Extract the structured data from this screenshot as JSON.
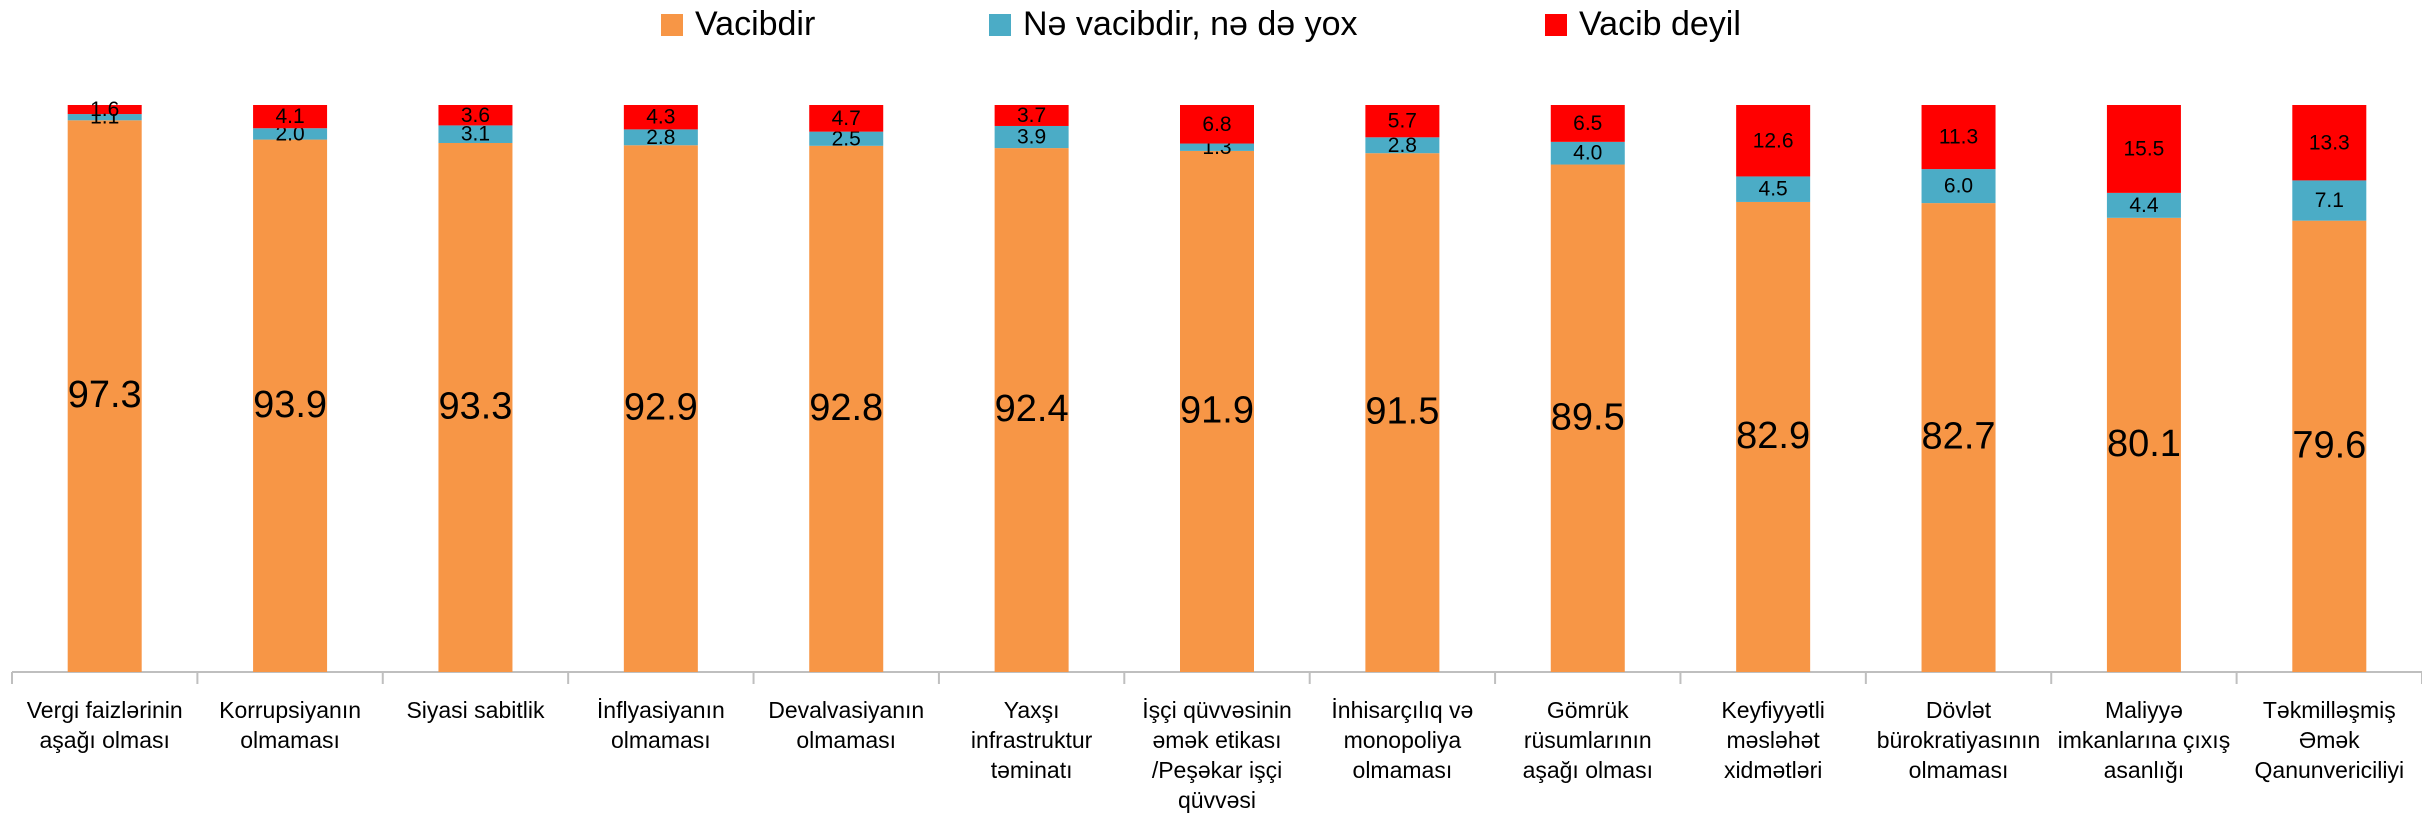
{
  "chart_data": {
    "type": "stacked_bar",
    "categories": [
      [
        "Vergi faizlərinin",
        "aşağı olması"
      ],
      [
        "Korrupsiyanın",
        "olmaması"
      ],
      [
        "Siyasi sabitlik"
      ],
      [
        "İnflyasiyanın",
        "olmaması"
      ],
      [
        "Devalvasiyanın",
        "olmaması"
      ],
      [
        "Yaxşı",
        "infrastruktur",
        "təminatı"
      ],
      [
        "İşçi qüvvəsinin",
        "əmək etikası",
        "/Peşəkar işçi",
        "qüvvəsi"
      ],
      [
        "İnhisarçılıq və",
        "monopoliya",
        "olmaması"
      ],
      [
        "Gömrük",
        "rüsumlarının",
        "aşağı olması"
      ],
      [
        "Keyfiyyətli",
        "məsləhət",
        "xidmətləri"
      ],
      [
        "Dövlət",
        "bürokratiyasının",
        "olmaması"
      ],
      [
        "Maliyyə",
        "imkanlarına çıxış",
        "asanlığı"
      ],
      [
        "Təkmilləşmiş",
        "Əmək",
        "Qanunvericiliyi"
      ]
    ],
    "series": [
      {
        "name": "Vacibdir",
        "color": "#F79646",
        "values": [
          97.3,
          93.9,
          93.3,
          92.9,
          92.8,
          92.4,
          91.9,
          91.5,
          89.5,
          82.9,
          82.7,
          80.1,
          79.6
        ]
      },
      {
        "name": "Nə vacibdir, nə də yox",
        "color": "#4BACC6",
        "values": [
          1.1,
          2.0,
          3.1,
          2.8,
          2.5,
          3.9,
          1.3,
          2.8,
          4.0,
          4.5,
          6.0,
          4.4,
          7.1
        ],
        "value_labels": [
          "1.1",
          "2.0",
          "3.1",
          "2.8",
          "2.5",
          "3.9",
          "1.3",
          "2.8",
          "4.0",
          "4.5",
          "6.0",
          "4.4",
          "7.1"
        ]
      },
      {
        "name": "Vacib deyil",
        "color": "#FF0000",
        "values": [
          1.6,
          4.1,
          3.6,
          4.3,
          4.7,
          3.7,
          6.8,
          5.7,
          6.5,
          12.6,
          11.3,
          15.5,
          13.3
        ]
      }
    ],
    "ylim": [
      0,
      100
    ],
    "legend": "top"
  }
}
